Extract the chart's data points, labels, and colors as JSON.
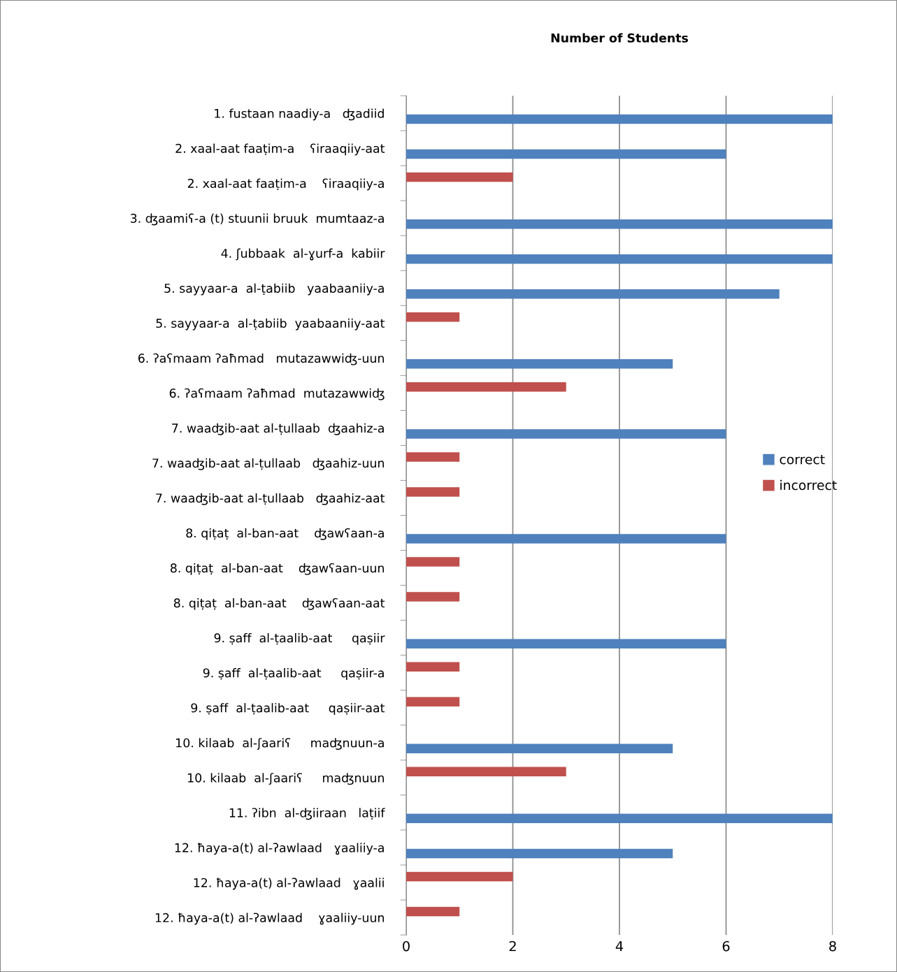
{
  "chart_data": {
    "type": "bar",
    "orientation": "horizontal",
    "title": "Number of Students",
    "categories": [
      "1. fustaan naadiy-a   ʤadiid",
      "2. xaal-aat faaṭim-a    ʕiraaqiiy-aat",
      "2. xaal-aat faaṭim-a    ʕiraaqiiy-a",
      "3. ʤaamiʕ-a (t) stuunii bruuk  mumtaaz-a",
      "4. ʃubbaak  al-ɣurf-a  kabiir",
      "5. sayyaar-a  al-ṭabiib   yaabaaniiy-a",
      "5. sayyaar-a  al-ṭabiib  yaabaaniiy-aat",
      "6. ʔaʕmaam ʔaħmad   mutazawwiʤ-uun",
      "6. ʔaʕmaam ʔaħmad  mutazawwiʤ",
      "7. waaʤib-aat al-ṭullaab  ʤaahiz-a",
      "7. waaʤib-aat al-ṭullaab   ʤaahiz-uun",
      "7. waaʤib-aat al-ṭullaab   ʤaahiz-aat",
      "8. qiṭaṭ  al-ban-aat    ʤawʕaan-a",
      "8. qiṭaṭ  al-ban-aat    ʤawʕaan-uun",
      "8. qiṭaṭ  al-ban-aat    ʤawʕaan-aat",
      "9. ṣaff  al-ṭaalib-aat     qaṣiir",
      "9. ṣaff  al-ṭaalib-aat     qaṣiir-a",
      "9. ṣaff  al-ṭaalib-aat     qaṣiir-aat",
      "10. kilaab  al-ʃaariʕ     maʤnuun-a",
      "10. kilaab  al-ʃaariʕ     maʤnuun",
      "11. ʔibn  al-ʤiiraan   laṭiif",
      "12. ħaya-a(t) al-ʔawlaad   ɣaaliiy-a",
      "12. ħaya-a(t) al-ʔawlaad   ɣaalii",
      "12. ħaya-a(t) al-ʔawlaad    ɣaaliiy-uun"
    ],
    "series": [
      {
        "name": "incorrect",
        "color": "#c0504d",
        "values": [
          null,
          null,
          2,
          null,
          null,
          null,
          1,
          null,
          3,
          null,
          1,
          1,
          null,
          1,
          1,
          null,
          1,
          1,
          null,
          3,
          null,
          null,
          2,
          1
        ]
      },
      {
        "name": "correct",
        "color": "#4f81bd",
        "values": [
          8,
          6,
          null,
          8,
          8,
          7,
          null,
          5,
          null,
          6,
          null,
          null,
          6,
          null,
          null,
          6,
          null,
          null,
          5,
          null,
          8,
          5,
          null,
          null
        ]
      }
    ],
    "xlim": [
      0,
      8
    ],
    "xticks": [
      0,
      2,
      4,
      6,
      8
    ],
    "grid": "x",
    "legend": "right"
  }
}
